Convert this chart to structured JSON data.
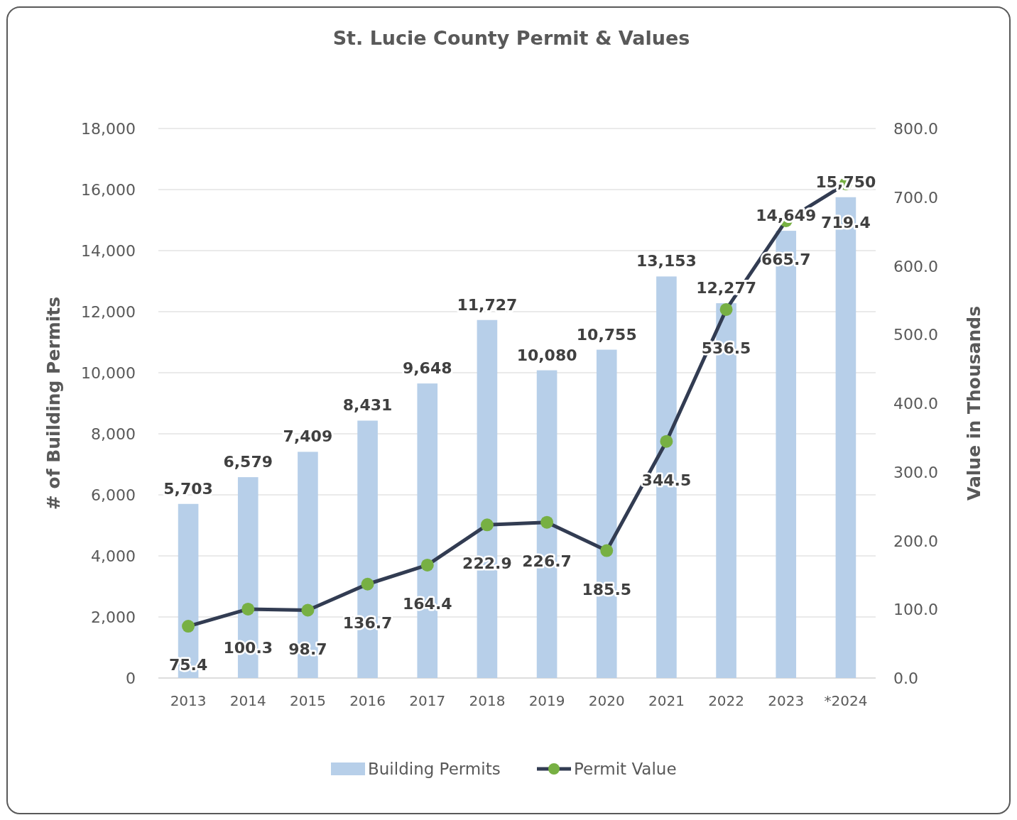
{
  "chart_data": {
    "type": "bar",
    "title": "St. Lucie County Permit & Values",
    "ylabel": "# of Building Permits",
    "y2label": "Value in Thousands",
    "categories": [
      "2013",
      "2014",
      "2015",
      "2016",
      "2017",
      "2018",
      "2019",
      "2020",
      "2021",
      "2022",
      "2023",
      "*2024"
    ],
    "series": [
      {
        "name": "Building Permits",
        "color": "#b7cfe9",
        "values": [
          5703,
          6579,
          7409,
          8431,
          9648,
          11727,
          10080,
          10755,
          13153,
          12277,
          14649,
          15750
        ],
        "value_labels": [
          "5,703",
          "6,579",
          "7,409",
          "8,431",
          "9,648",
          "11,727",
          "10,080",
          "10,755",
          "13,153",
          "12,277",
          "14,649",
          "15,750"
        ]
      },
      {
        "name": "Permit Value",
        "type": "line",
        "axis": "y2",
        "color": "#323c52",
        "colors": [
          "#77b043",
          "#77b043",
          "#77b043",
          "#77b043",
          "#77b043",
          "#77b043",
          "#77b043",
          "#77b043",
          "#77b043",
          "#77b043",
          "#77b043",
          "#77b043"
        ],
        "values": [
          75.4,
          100.3,
          98.7,
          136.7,
          164.4,
          222.9,
          226.7,
          185.5,
          344.5,
          536.5,
          665.7,
          719.4
        ],
        "value_labels": [
          "75.4",
          "100.3",
          "98.7",
          "136.7",
          "164.4",
          "222.9",
          "226.7",
          "185.5",
          "344.5",
          "536.5",
          "665.7",
          "719.4"
        ]
      }
    ],
    "ylim": [
      0,
      18000
    ],
    "yticks": [
      0,
      {
        "value": 2000,
        "label": "2,000"
      },
      {
        "value": 4000,
        "label": "4,000"
      },
      {
        "value": 6000,
        "label": "6,000"
      },
      {
        "value": 8000,
        "label": "8,000"
      },
      {
        "value": 10000,
        "label": "10,000"
      },
      {
        "value": 12000,
        "label": "12,000"
      },
      {
        "value": 14000,
        "label": "14,000"
      },
      {
        "value": 16000,
        "label": "16,000"
      },
      {
        "value": 18000,
        "label": "18,000"
      }
    ],
    "y2lim": [
      0,
      800
    ],
    "y2ticks": [
      {
        "value": 0,
        "label": "0.0"
      },
      {
        "value": 100,
        "label": "100.0"
      },
      {
        "value": 200,
        "label": "200.0"
      },
      {
        "value": 300,
        "label": "300.0"
      },
      {
        "value": 400,
        "label": "400.0"
      },
      {
        "value": 500,
        "label": "500.0"
      },
      {
        "value": 600,
        "label": "600.0"
      },
      {
        "value": 700,
        "label": "700.0"
      },
      {
        "value": 800,
        "label": "800.0"
      }
    ],
    "grid": "y",
    "legend": "bottom",
    "marker": "circle",
    "line_style": "solid"
  }
}
